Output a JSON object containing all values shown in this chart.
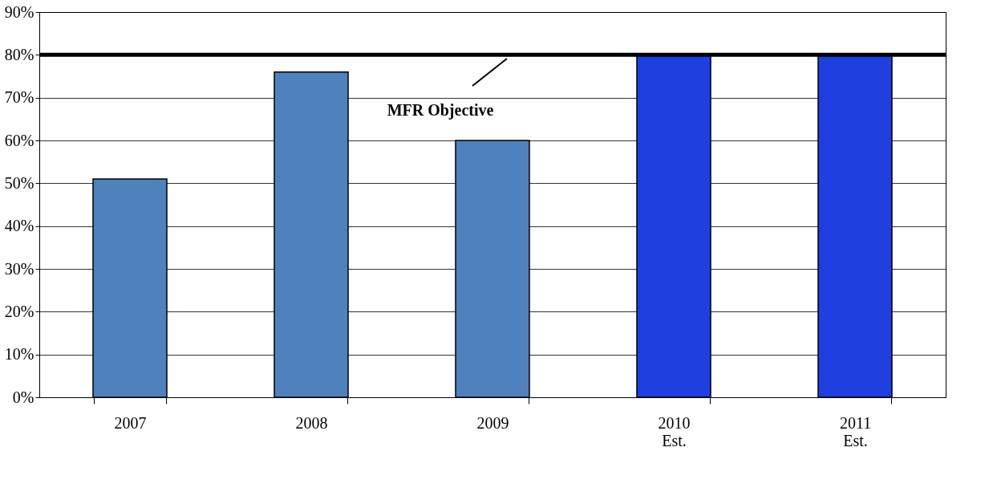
{
  "chart_data": {
    "type": "bar",
    "categories": [
      "2007",
      "2008",
      "2009",
      "2010\nEst.",
      "2011\nEst."
    ],
    "values": [
      51,
      76,
      60,
      80,
      80
    ],
    "colors": [
      "#4f81bd",
      "#4f81bd",
      "#4f81bd",
      "#1f3fe0",
      "#1f3fe0"
    ],
    "ylim": [
      0,
      90
    ],
    "yticks": [
      {
        "value": 0,
        "label": "0%"
      },
      {
        "value": 10,
        "label": "10%"
      },
      {
        "value": 20,
        "label": "20%"
      },
      {
        "value": 30,
        "label": "30%"
      },
      {
        "value": 40,
        "label": "40%"
      },
      {
        "value": 50,
        "label": "50%"
      },
      {
        "value": 60,
        "label": "60%"
      },
      {
        "value": 70,
        "label": "70%"
      },
      {
        "value": 80,
        "label": "80%"
      },
      {
        "value": 90,
        "label": "90%"
      }
    ],
    "grid": "y",
    "ref_lines": [
      {
        "axis": "y",
        "value": 80,
        "label": "MFR Objective",
        "color": "#000000"
      }
    ]
  }
}
